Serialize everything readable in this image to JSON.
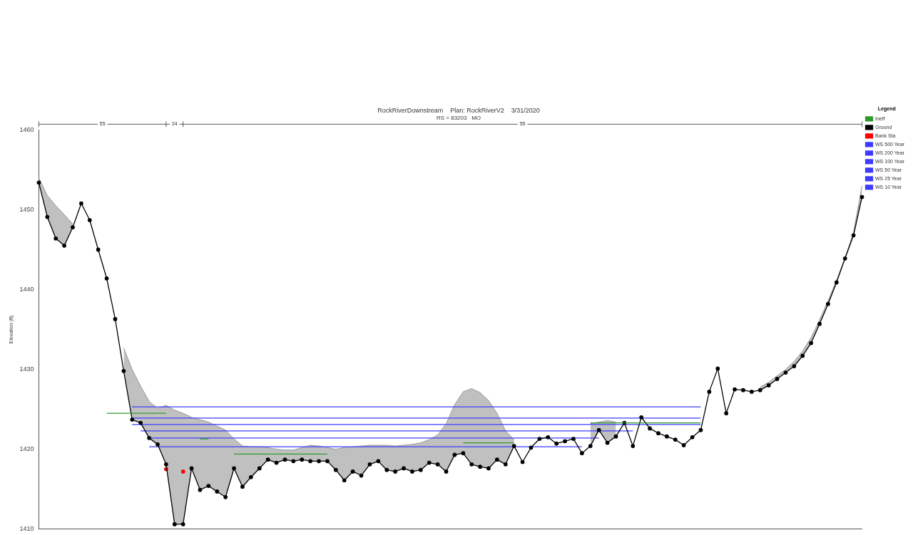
{
  "chart_data": {
    "type": "line",
    "title": "RockRiverDownstream    Plan: RockRiverV2    3/31/2020",
    "subtitle": "RS = 83203   MO",
    "ylabel": "Elevation (ft)",
    "legend_title": "Legend",
    "legend": "top right",
    "grid": false,
    "tick_labels": "y",
    "marker": "circle",
    "annotations": [
      "55",
      "24",
      "55"
    ],
    "ylim": [
      1410,
      1460
    ],
    "yticks": [
      1410,
      1420,
      1430,
      1440,
      1450,
      1460
    ],
    "categories": [
      null,
      null,
      null,
      null,
      null,
      null,
      null,
      null,
      null,
      null,
      null,
      null,
      null,
      null,
      null,
      null,
      null,
      null,
      null,
      null,
      null,
      null,
      null,
      null,
      null,
      null,
      null,
      null,
      null,
      null,
      null,
      null,
      null,
      null,
      null,
      null,
      null,
      null,
      null,
      null,
      null,
      null,
      null,
      null,
      null,
      null,
      null,
      null,
      null,
      null,
      null,
      null,
      null,
      null,
      null,
      null,
      null,
      null,
      null,
      null,
      null,
      null,
      null,
      null,
      null,
      null,
      null,
      null,
      null,
      null,
      null,
      null,
      null,
      null,
      null,
      null,
      null,
      null,
      null,
      null,
      null,
      null,
      null,
      null,
      null,
      null,
      null,
      null,
      null,
      null,
      null,
      null,
      null,
      null,
      null,
      null,
      null,
      null
    ],
    "series": [
      {
        "name": "WS 500 Year",
        "color": "#3c3cff",
        "marker": "none",
        "values": [
          null,
          null,
          null,
          null,
          null,
          null,
          null,
          null,
          null,
          null,
          null,
          1425.3,
          1425.3,
          1425.3,
          1425.3,
          1425.3,
          1425.3,
          1425.3,
          1425.3,
          1425.3,
          1425.3,
          1425.3,
          1425.3,
          1425.3,
          1425.3,
          1425.3,
          1425.3,
          1425.3,
          1425.3,
          1425.3,
          1425.3,
          1425.3,
          1425.3,
          1425.3,
          1425.3,
          1425.3,
          1425.3,
          1425.3,
          1425.3,
          1425.3,
          1425.3,
          1425.3,
          1425.3,
          1425.3,
          1425.3,
          1425.3,
          1425.3,
          1425.3,
          1425.3,
          1425.3,
          1425.3,
          1425.3,
          1425.3,
          1425.3,
          1425.3,
          1425.3,
          1425.3,
          1425.3,
          1425.3,
          1425.3,
          1425.3,
          1425.3,
          1425.3,
          1425.3,
          1425.3,
          1425.3,
          1425.3,
          1425.3,
          1425.3,
          1425.3,
          1425.3,
          1425.3,
          1425.3,
          1425.3,
          1425.3,
          1425.3,
          1425.3,
          1425.3,
          1425.3,
          null,
          null,
          null,
          null,
          null,
          null,
          null,
          null,
          null,
          null,
          null,
          null,
          null,
          null,
          null,
          null,
          null,
          null,
          null
        ]
      },
      {
        "name": "WS 200 Year",
        "color": "#3c3cff",
        "marker": "none",
        "values": [
          null,
          null,
          null,
          null,
          null,
          null,
          null,
          null,
          null,
          null,
          null,
          1423.9,
          1423.9,
          1423.9,
          1423.9,
          1423.9,
          1423.9,
          1423.9,
          1423.9,
          1423.9,
          1423.9,
          1423.9,
          1423.9,
          1423.9,
          1423.9,
          1423.9,
          1423.9,
          1423.9,
          1423.9,
          1423.9,
          1423.9,
          1423.9,
          1423.9,
          1423.9,
          1423.9,
          1423.9,
          1423.9,
          1423.9,
          1423.9,
          1423.9,
          1423.9,
          1423.9,
          1423.9,
          1423.9,
          1423.9,
          1423.9,
          1423.9,
          1423.9,
          1423.9,
          1423.9,
          1423.9,
          1423.9,
          1423.9,
          1423.9,
          1423.9,
          1423.9,
          1423.9,
          1423.9,
          1423.9,
          1423.9,
          1423.9,
          1423.9,
          1423.9,
          1423.9,
          1423.9,
          1423.9,
          1423.9,
          1423.9,
          1423.9,
          1423.9,
          1423.9,
          1423.9,
          1423.9,
          1423.9,
          1423.9,
          1423.9,
          1423.9,
          1423.9,
          1423.9,
          null,
          null,
          null,
          null,
          null,
          null,
          null,
          null,
          null,
          null,
          null,
          null,
          null,
          null,
          null,
          null,
          null,
          null,
          null
        ]
      },
      {
        "name": "WS 100 Year",
        "color": "#3c3cff",
        "marker": "none",
        "values": [
          null,
          null,
          null,
          null,
          null,
          null,
          null,
          null,
          null,
          null,
          null,
          1423.1,
          1423.1,
          1423.1,
          1423.1,
          1423.1,
          1423.1,
          1423.1,
          1423.1,
          1423.1,
          1423.1,
          1423.1,
          1423.1,
          1423.1,
          1423.1,
          1423.1,
          1423.1,
          1423.1,
          1423.1,
          1423.1,
          1423.1,
          1423.1,
          1423.1,
          1423.1,
          1423.1,
          1423.1,
          1423.1,
          1423.1,
          1423.1,
          1423.1,
          1423.1,
          1423.1,
          1423.1,
          1423.1,
          1423.1,
          1423.1,
          1423.1,
          1423.1,
          1423.1,
          1423.1,
          1423.1,
          1423.1,
          1423.1,
          1423.1,
          1423.1,
          1423.1,
          1423.1,
          1423.1,
          1423.1,
          1423.1,
          1423.1,
          1423.1,
          1423.1,
          1423.1,
          1423.1,
          1423.1,
          1423.1,
          1423.1,
          1423.1,
          1423.1,
          1423.1,
          1423.1,
          1423.1,
          1423.1,
          1423.1,
          1423.1,
          1423.1,
          1423.1,
          1423.1,
          null,
          null,
          null,
          null,
          null,
          null,
          null,
          null,
          null,
          null,
          null,
          null,
          null,
          null,
          null,
          null,
          null,
          null,
          null
        ]
      },
      {
        "name": "WS 50 Year",
        "color": "#3c3cff",
        "marker": "none",
        "values": [
          null,
          null,
          null,
          null,
          null,
          null,
          null,
          null,
          null,
          null,
          null,
          null,
          1422.3,
          1422.3,
          1422.3,
          1422.3,
          1422.3,
          1422.3,
          1422.3,
          1422.3,
          1422.3,
          1422.3,
          1422.3,
          1422.3,
          1422.3,
          1422.3,
          1422.3,
          1422.3,
          1422.3,
          1422.3,
          1422.3,
          1422.3,
          1422.3,
          1422.3,
          1422.3,
          1422.3,
          1422.3,
          1422.3,
          1422.3,
          1422.3,
          1422.3,
          1422.3,
          1422.3,
          1422.3,
          1422.3,
          1422.3,
          1422.3,
          1422.3,
          1422.3,
          1422.3,
          1422.3,
          1422.3,
          1422.3,
          1422.3,
          1422.3,
          1422.3,
          1422.3,
          1422.3,
          1422.3,
          1422.3,
          1422.3,
          1422.3,
          1422.3,
          1422.3,
          1422.3,
          1422.3,
          1422.3,
          1422.3,
          1422.3,
          1422.3,
          1422.3,
          null,
          null,
          null,
          null,
          null,
          null,
          null,
          null,
          null,
          null,
          null,
          null,
          null,
          null,
          null,
          null,
          null,
          null,
          null,
          null,
          null,
          null,
          null,
          null,
          null,
          null,
          null
        ]
      },
      {
        "name": "WS 25 Year",
        "color": "#3c3cff",
        "marker": "none",
        "values": [
          null,
          null,
          null,
          null,
          null,
          null,
          null,
          null,
          null,
          null,
          null,
          null,
          null,
          1421.4,
          1421.4,
          1421.4,
          1421.4,
          1421.4,
          1421.4,
          1421.4,
          1421.4,
          1421.4,
          1421.4,
          1421.4,
          1421.4,
          1421.4,
          1421.4,
          1421.4,
          1421.4,
          1421.4,
          1421.4,
          1421.4,
          1421.4,
          1421.4,
          1421.4,
          1421.4,
          1421.4,
          1421.4,
          1421.4,
          1421.4,
          1421.4,
          1421.4,
          1421.4,
          1421.4,
          1421.4,
          1421.4,
          1421.4,
          1421.4,
          1421.4,
          1421.4,
          1421.4,
          1421.4,
          1421.4,
          1421.4,
          1421.4,
          1421.4,
          1421.4,
          1421.4,
          1421.4,
          1421.4,
          1421.4,
          1421.4,
          1421.4,
          1421.4,
          1421.4,
          1421.4,
          1421.4,
          null,
          null,
          null,
          null,
          null,
          null,
          null,
          null,
          null,
          null,
          null,
          null,
          null,
          null,
          null,
          null,
          null,
          null,
          null,
          null,
          null,
          null,
          null,
          null,
          null,
          null,
          null,
          null,
          null,
          null,
          null
        ]
      },
      {
        "name": "WS 10 Year",
        "color": "#3c3cff",
        "marker": "none",
        "values": [
          null,
          null,
          null,
          null,
          null,
          null,
          null,
          null,
          null,
          null,
          null,
          null,
          null,
          1420.3,
          1420.3,
          1420.3,
          1420.3,
          1420.3,
          1420.3,
          1420.3,
          1420.3,
          1420.3,
          1420.3,
          1420.3,
          1420.3,
          1420.3,
          1420.3,
          1420.3,
          1420.3,
          1420.3,
          1420.3,
          1420.3,
          1420.3,
          1420.3,
          1420.3,
          1420.3,
          1420.3,
          1420.3,
          1420.3,
          1420.3,
          1420.3,
          1420.3,
          1420.3,
          1420.3,
          1420.3,
          1420.3,
          1420.3,
          1420.3,
          1420.3,
          1420.3,
          1420.3,
          1420.3,
          1420.3,
          1420.3,
          1420.3,
          1420.3,
          1420.3,
          1420.3,
          1420.3,
          1420.3,
          1420.3,
          1420.3,
          1420.3,
          1420.3,
          1420.3,
          null,
          null,
          null,
          null,
          null,
          null,
          null,
          null,
          null,
          null,
          null,
          null,
          null,
          null,
          null,
          null,
          null,
          null,
          null,
          null,
          null,
          null,
          null,
          null,
          null,
          null,
          null,
          null,
          null,
          null,
          null,
          null,
          null
        ]
      },
      {
        "type": "area",
        "color": "#c0c0c0",
        "marker": "none",
        "values": [
          1454.0,
          1451.8,
          1450.5,
          1449.4,
          1448.2,
          null,
          null,
          null,
          null,
          null,
          1432.7,
          1430.0,
          1427.9,
          1426.0,
          1425.1,
          1425.5,
          1424.9,
          1424.5,
          1424.0,
          1423.7,
          1423.4,
          1422.9,
          1422.4,
          1421.3,
          1420.4,
          1420.3,
          1420.3,
          1420.2,
          1420.0,
          1419.9,
          1419.9,
          1420.2,
          1420.5,
          1420.4,
          1420.2,
          1420.0,
          1420.2,
          1420.3,
          1420.4,
          1420.5,
          1420.5,
          1420.5,
          1420.4,
          1420.5,
          1420.6,
          1420.8,
          1421.2,
          1421.8,
          1423.2,
          1425.6,
          1427.2,
          1427.6,
          1427.1,
          1426.1,
          1424.5,
          1422.3,
          1421.2,
          null,
          null,
          null,
          null,
          null,
          null,
          null,
          null,
          1423.2,
          1423.4,
          1423.6,
          1423.4,
          null,
          null,
          null,
          null,
          null,
          null,
          null,
          null,
          null,
          null,
          null,
          null,
          null,
          null,
          null,
          null,
          1427.8,
          1428.4,
          1429.2,
          1430.0,
          1431.0,
          1432.3,
          1434.0,
          1436.2,
          1438.6,
          1441.2,
          1444.0,
          1447.2,
          1453.0
        ]
      },
      {
        "name": "Ground",
        "color": "#000000",
        "values": [
          1453.4,
          1449.1,
          1446.4,
          1445.5,
          1447.8,
          1450.8,
          1448.7,
          1445.0,
          1441.4,
          1436.3,
          1429.8,
          1423.7,
          1423.3,
          1421.4,
          1420.6,
          1418.1,
          1410.6,
          1410.6,
          1417.6,
          1414.9,
          1415.4,
          1414.7,
          1414.0,
          1417.6,
          1415.3,
          1416.5,
          1417.6,
          1418.7,
          1418.3,
          1418.7,
          1418.5,
          1418.7,
          1418.5,
          1418.5,
          1418.5,
          1417.4,
          1416.1,
          1417.2,
          1416.7,
          1418.1,
          1418.5,
          1417.4,
          1417.2,
          1417.6,
          1417.2,
          1417.4,
          1418.3,
          1418.1,
          1417.2,
          1419.3,
          1419.5,
          1418.1,
          1417.8,
          1417.6,
          1418.7,
          1418.1,
          1420.4,
          1418.4,
          1420.2,
          1421.3,
          1421.5,
          1420.7,
          1421.0,
          1421.3,
          1419.5,
          1420.4,
          1422.4,
          1420.8,
          1421.6,
          1423.3,
          1420.4,
          1424.0,
          1422.6,
          1422.0,
          1421.6,
          1421.2,
          1420.5,
          1421.5,
          1422.4,
          1427.2,
          1430.1,
          1424.5,
          1427.5,
          1427.4,
          1427.2,
          1427.4,
          1428.0,
          1428.8,
          1429.6,
          1430.4,
          1431.7,
          1433.3,
          1435.7,
          1438.2,
          1440.9,
          1443.9,
          1446.8,
          1451.6
        ]
      },
      {
        "name": "Ineff",
        "color": "#2e9b2e",
        "marker": "none",
        "values": [
          null,
          null,
          null,
          null,
          null,
          null,
          null,
          null,
          1424.5,
          1424.5,
          1424.5,
          1424.5,
          1424.5,
          1424.5,
          1424.5,
          1424.5,
          null,
          null,
          null,
          1421.3,
          1421.3,
          null,
          null,
          1419.4,
          1419.4,
          1419.4,
          1419.4,
          1419.4,
          1419.4,
          1419.4,
          1419.4,
          1419.4,
          1419.4,
          1419.4,
          1419.4,
          null,
          null,
          null,
          null,
          null,
          null,
          null,
          null,
          null,
          null,
          null,
          null,
          null,
          null,
          null,
          1420.8,
          1420.8,
          1420.8,
          1420.8,
          1420.8,
          1420.8,
          1420.8,
          null,
          null,
          null,
          null,
          null,
          null,
          null,
          null,
          1423.3,
          1423.3,
          1423.3,
          1423.3,
          1423.3,
          1423.3,
          1423.3,
          1423.3,
          1423.3,
          1423.3,
          1423.3,
          1423.3,
          1423.3,
          1423.3,
          null,
          null,
          null,
          null,
          null,
          null,
          null,
          null,
          null,
          null,
          null,
          null,
          null,
          null,
          null,
          null,
          null,
          null,
          null
        ]
      },
      {
        "name": "Bank Sta",
        "type": "scatter",
        "color": "#ff0000",
        "values": [
          null,
          null,
          null,
          null,
          null,
          null,
          null,
          null,
          null,
          null,
          null,
          null,
          null,
          null,
          null,
          1417.5,
          null,
          1417.2,
          null,
          null,
          null,
          null,
          null,
          null,
          null,
          null,
          null,
          null,
          null,
          null,
          null,
          null,
          null,
          null,
          null,
          null,
          null,
          null,
          null,
          null,
          null,
          null,
          null,
          null,
          null,
          null,
          null,
          null,
          null,
          null,
          null,
          null,
          null,
          null,
          null,
          null,
          null,
          null,
          null,
          null,
          null,
          null,
          null,
          null,
          null,
          null,
          null,
          null,
          null,
          null,
          null,
          null,
          null,
          null,
          null,
          null,
          null,
          null,
          null,
          null,
          null,
          null,
          null,
          null,
          null,
          null,
          null,
          null,
          null,
          null,
          null,
          null,
          null,
          null,
          null,
          null,
          null,
          null
        ]
      }
    ]
  }
}
